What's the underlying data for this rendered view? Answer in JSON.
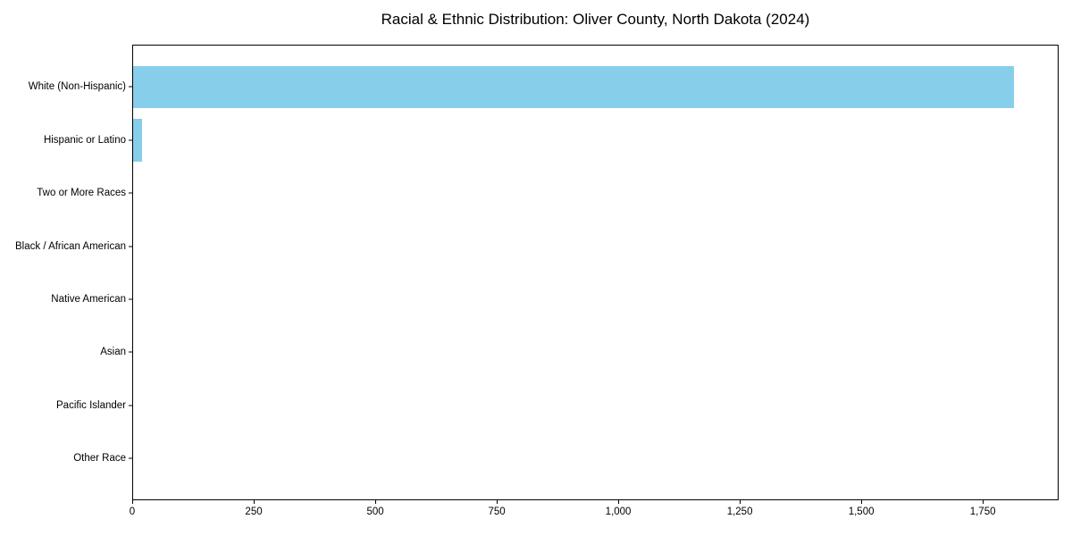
{
  "figure": {
    "background": "#ffffff"
  },
  "chart_data": {
    "type": "bar",
    "orientation": "horizontal",
    "title": "Racial & Ethnic Distribution: Oliver County, North Dakota (2024)",
    "categories": [
      "White (Non-Hispanic)",
      "Hispanic or Latino",
      "Two or More Races",
      "Black / African American",
      "Native American",
      "Asian",
      "Pacific Islander",
      "Other Race"
    ],
    "values": [
      1815,
      18,
      0,
      0,
      0,
      0,
      0,
      0
    ],
    "title_text": "Racial & Ethnic Distribution: Oliver County, North Dakota (2024)",
    "xlabel": "",
    "ylabel": "",
    "xlim": [
      0,
      1906
    ],
    "x_ticks": [
      0,
      250,
      500,
      750,
      1000,
      1250,
      1500,
      1750
    ],
    "x_tick_labels": [
      "0",
      "250",
      "500",
      "750",
      "1,000",
      "1,250",
      "1,500",
      "1,750"
    ],
    "bar_color": "#87ceeb",
    "axis_color": "#000000",
    "grid": false,
    "legend_position": "none"
  }
}
